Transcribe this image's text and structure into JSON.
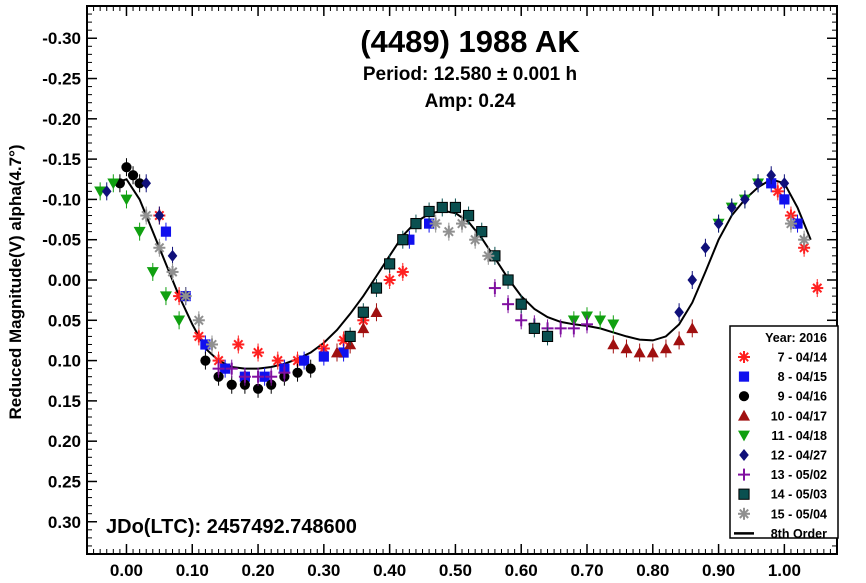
{
  "chart_data": {
    "type": "scatter",
    "title": "(4489) 1988 AK",
    "subtitle_period": "Period: 12.580 ± 0.001 h",
    "subtitle_amp": "Amp: 0.24",
    "ylabel": "Reduced Magnitude(V) alpha(4.7°)",
    "xlabel": "",
    "xlim": [
      -0.06,
      1.08
    ],
    "ylim": [
      -0.34,
      0.34
    ],
    "y_inverted": true,
    "x_ticks": [
      "0.00",
      "0.10",
      "0.20",
      "0.30",
      "0.40",
      "0.50",
      "0.60",
      "0.70",
      "0.80",
      "0.90",
      "1.00"
    ],
    "x_tick_values": [
      0,
      0.1,
      0.2,
      0.3,
      0.4,
      0.5,
      0.6,
      0.7,
      0.8,
      0.9,
      1.0
    ],
    "y_ticks": [
      "-0.30",
      "-0.25",
      "-0.20",
      "-0.15",
      "-0.10",
      "-0.05",
      "0.00",
      "0.05",
      "0.10",
      "0.15",
      "0.20",
      "0.25",
      "0.30"
    ],
    "y_tick_values": [
      -0.3,
      -0.25,
      -0.2,
      -0.15,
      -0.1,
      -0.05,
      0.0,
      0.05,
      0.1,
      0.15,
      0.2,
      0.25,
      0.3
    ],
    "annotation": "JDo(LTC): 2457492.748600",
    "legend_title": "Year: 2016",
    "legend_position": "bottom-right",
    "grid": false,
    "series": [
      {
        "name": "7 - 04/14",
        "marker": "asterisk",
        "color": "#ff2020",
        "x": [
          0.05,
          0.08,
          0.11,
          0.14,
          0.17,
          0.2,
          0.23,
          0.26,
          0.3,
          0.33,
          0.36,
          0.4,
          0.42,
          0.99,
          1.01,
          1.03,
          1.05
        ],
        "y": [
          -0.08,
          0.02,
          0.07,
          0.1,
          0.08,
          0.09,
          0.1,
          0.1,
          0.085,
          0.075,
          0.05,
          0.0,
          -0.01,
          -0.11,
          -0.08,
          -0.04,
          0.01
        ]
      },
      {
        "name": "8 - 04/15",
        "marker": "square",
        "color": "#1010ee",
        "x": [
          0.06,
          0.09,
          0.12,
          0.15,
          0.18,
          0.21,
          0.24,
          0.27,
          0.3,
          0.33,
          0.43,
          0.46,
          0.98,
          1.0,
          1.02
        ],
        "y": [
          -0.06,
          0.02,
          0.08,
          0.11,
          0.12,
          0.12,
          0.11,
          0.1,
          0.095,
          0.09,
          -0.05,
          -0.07,
          -0.12,
          -0.1,
          -0.07
        ]
      },
      {
        "name": "9 - 04/16",
        "marker": "circle",
        "color": "#000000",
        "x": [
          -0.01,
          0.0,
          0.01,
          0.02,
          0.12,
          0.14,
          0.16,
          0.18,
          0.2,
          0.22,
          0.24,
          0.26,
          0.28
        ],
        "y": [
          -0.12,
          -0.14,
          -0.13,
          -0.12,
          0.1,
          0.12,
          0.13,
          0.13,
          0.135,
          0.13,
          0.12,
          0.115,
          0.11
        ]
      },
      {
        "name": "10 - 04/17",
        "marker": "triangle-up",
        "color": "#a01010",
        "x": [
          0.32,
          0.34,
          0.36,
          0.38,
          0.74,
          0.76,
          0.78,
          0.8,
          0.82,
          0.84,
          0.86
        ],
        "y": [
          0.09,
          0.08,
          0.06,
          0.04,
          0.08,
          0.085,
          0.09,
          0.09,
          0.085,
          0.075,
          0.06
        ]
      },
      {
        "name": "11 - 04/18",
        "marker": "triangle-down",
        "color": "#10a010",
        "x": [
          -0.04,
          -0.02,
          0.0,
          0.02,
          0.04,
          0.06,
          0.08,
          0.68,
          0.7,
          0.72,
          0.74,
          0.9,
          0.92,
          0.94,
          0.96
        ],
        "y": [
          -0.11,
          -0.12,
          -0.1,
          -0.06,
          -0.01,
          0.02,
          0.05,
          0.05,
          0.045,
          0.05,
          0.055,
          -0.07,
          -0.09,
          -0.1,
          -0.12
        ]
      },
      {
        "name": "12 - 04/27",
        "marker": "diamond",
        "color": "#10107a",
        "x": [
          -0.03,
          0.03,
          0.05,
          0.07,
          0.09,
          0.84,
          0.86,
          0.88,
          0.9,
          0.92,
          0.94,
          0.96,
          0.98,
          1.0
        ],
        "y": [
          -0.11,
          -0.12,
          -0.08,
          -0.03,
          0.02,
          0.04,
          0.0,
          -0.04,
          -0.07,
          -0.09,
          -0.1,
          -0.12,
          -0.13,
          -0.12
        ]
      },
      {
        "name": "13 - 05/02",
        "marker": "plus",
        "color": "#8010a0",
        "x": [
          0.14,
          0.16,
          0.18,
          0.2,
          0.22,
          0.24,
          0.56,
          0.58,
          0.6,
          0.62,
          0.64,
          0.66,
          0.68,
          0.7
        ],
        "y": [
          0.11,
          0.11,
          0.12,
          0.12,
          0.12,
          0.115,
          0.01,
          0.03,
          0.05,
          0.055,
          0.06,
          0.06,
          0.06,
          0.055
        ]
      },
      {
        "name": "14 - 05/03",
        "marker": "square-open",
        "color": "#0a5050",
        "x": [
          0.34,
          0.36,
          0.38,
          0.4,
          0.42,
          0.44,
          0.46,
          0.48,
          0.5,
          0.52,
          0.54,
          0.56,
          0.58,
          0.6,
          0.62,
          0.64
        ],
        "y": [
          0.07,
          0.04,
          0.01,
          -0.02,
          -0.05,
          -0.07,
          -0.085,
          -0.09,
          -0.09,
          -0.08,
          -0.06,
          -0.03,
          0.0,
          0.03,
          0.06,
          0.07
        ]
      },
      {
        "name": "15 - 05/04",
        "marker": "asterisk",
        "color": "#909090",
        "x": [
          0.03,
          0.05,
          0.07,
          0.09,
          0.11,
          0.13,
          0.47,
          0.49,
          0.51,
          0.53,
          0.55,
          1.01,
          1.03
        ],
        "y": [
          -0.08,
          -0.04,
          -0.01,
          0.02,
          0.05,
          0.08,
          -0.07,
          -0.06,
          -0.07,
          -0.05,
          -0.03,
          -0.07,
          -0.05
        ]
      }
    ],
    "fit": {
      "name": "8th Order",
      "color": "#000000",
      "x": [
        -0.02,
        0.0,
        0.02,
        0.04,
        0.06,
        0.08,
        0.1,
        0.12,
        0.14,
        0.16,
        0.18,
        0.2,
        0.22,
        0.24,
        0.26,
        0.28,
        0.3,
        0.32,
        0.34,
        0.36,
        0.38,
        0.4,
        0.42,
        0.44,
        0.46,
        0.48,
        0.5,
        0.52,
        0.54,
        0.56,
        0.58,
        0.6,
        0.62,
        0.64,
        0.66,
        0.68,
        0.7,
        0.72,
        0.74,
        0.76,
        0.78,
        0.8,
        0.82,
        0.84,
        0.86,
        0.88,
        0.9,
        0.92,
        0.94,
        0.96,
        0.98,
        1.0,
        1.02,
        1.04
      ],
      "y": [
        -0.12,
        -0.125,
        -0.1,
        -0.06,
        -0.02,
        0.02,
        0.055,
        0.085,
        0.1,
        0.108,
        0.11,
        0.11,
        0.108,
        0.104,
        0.098,
        0.09,
        0.078,
        0.062,
        0.042,
        0.02,
        -0.005,
        -0.03,
        -0.055,
        -0.072,
        -0.082,
        -0.086,
        -0.083,
        -0.072,
        -0.052,
        -0.027,
        -0.002,
        0.02,
        0.036,
        0.046,
        0.052,
        0.055,
        0.057,
        0.06,
        0.065,
        0.07,
        0.074,
        0.075,
        0.07,
        0.055,
        0.028,
        -0.01,
        -0.05,
        -0.08,
        -0.1,
        -0.115,
        -0.125,
        -0.12,
        -0.09,
        -0.05
      ]
    }
  }
}
